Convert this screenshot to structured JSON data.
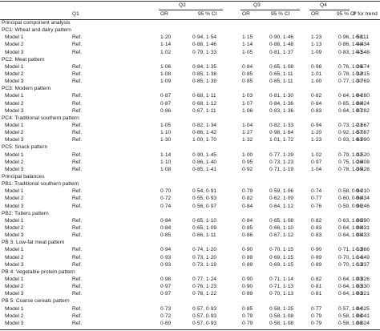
{
  "header": {
    "q1": "Q1",
    "q2": "Q2",
    "q3": "Q3",
    "q4": "Q4",
    "or": "OR",
    "ci": "95 % CI",
    "p_italic": "P",
    "p_rest": " for trend"
  },
  "rows": [
    {
      "type": "section",
      "label": "Principal component analysis"
    },
    {
      "type": "group",
      "label": "PC1: Wheat and dairy pattern"
    },
    {
      "type": "data",
      "model": "Model 1",
      "q1": "Ref.",
      "or2": "1·20",
      "ci2": "0·94, 1·54",
      "or3": "1·15",
      "ci3": "0·90, 1·46",
      "or4": "1·23",
      "ci4": "0·96, 1·58",
      "p": "0·111"
    },
    {
      "type": "data",
      "model": "Model 2",
      "q1": "Ref.",
      "or2": "1·14",
      "ci2": "0·88, 1·46",
      "or3": "1·14",
      "ci3": "0·88, 1·48",
      "or4": "1·13",
      "ci4": "0·86, 1·48",
      "p": "0·434"
    },
    {
      "type": "data",
      "model": "Model 3",
      "q1": "Ref.",
      "or2": "1·02",
      "ci2": "0·79, 1·33",
      "or3": "1·05",
      "ci3": "0·81, 1·37",
      "or4": "1·09",
      "ci4": "0·83, 1·43",
      "p": "0·548"
    },
    {
      "type": "group",
      "label": "PC2: Meat pattern"
    },
    {
      "type": "data",
      "model": "Model 1",
      "q1": "Ref.",
      "or2": "1·06",
      "ci2": "0·84, 1·35",
      "or3": "0·84",
      "ci3": "0·65, 1·08",
      "or4": "0·98",
      "ci4": "0·76, 1·26",
      "p": "0·674"
    },
    {
      "type": "data",
      "model": "Model 2",
      "q1": "Ref.",
      "or2": "1·08",
      "ci2": "0·85, 1·38",
      "or3": "0·85",
      "ci3": "0·65, 1·11",
      "or4": "1·01",
      "ci4": "0·78, 1·32",
      "p": "0·815"
    },
    {
      "type": "data",
      "model": "Model 3",
      "q1": "Ref.",
      "or2": "1·09",
      "ci2": "0·85, 1·39",
      "or3": "0·85",
      "ci3": "0·65, 1·11",
      "or4": "1·00",
      "ci4": "0·77, 1·30",
      "p": "0·769"
    },
    {
      "type": "group",
      "label": "PC3: Modern pattern"
    },
    {
      "type": "data",
      "model": "Model 1",
      "q1": "Ref.",
      "or2": "0·87",
      "ci2": "0·68, 1·11",
      "or3": "1·03",
      "ci3": "0·81, 1·30",
      "or4": "0·82",
      "ci4": "0·64, 1·04",
      "p": "0·280"
    },
    {
      "type": "data",
      "model": "Model 2",
      "q1": "Ref.",
      "or2": "0·87",
      "ci2": "0·68, 1·12",
      "or3": "1·07",
      "ci3": "0·84, 1·36",
      "or4": "0·84",
      "ci4": "0·65, 1·08",
      "p": "0·424"
    },
    {
      "type": "data",
      "model": "Model 3",
      "q1": "Ref.",
      "or2": "0·86",
      "ci2": "0·67, 1·11",
      "or3": "1·06",
      "ci3": "0·83, 1·36",
      "or4": "0·83",
      "ci4": "0·64, 1·07",
      "p": "0·282"
    },
    {
      "type": "group",
      "label": "PC4: Traditional southern pattern"
    },
    {
      "type": "data",
      "model": "Model 1",
      "q1": "Ref.",
      "or2": "1·05",
      "ci2": "0·82, 1·34",
      "or3": "1·04",
      "ci3": "0·82, 1·33",
      "or4": "0·94",
      "ci4": "0·73, 1·21",
      "p": "0·667"
    },
    {
      "type": "data",
      "model": "Model 2",
      "q1": "Ref.",
      "or2": "1·10",
      "ci2": "0·86, 1·42",
      "or3": "1·27",
      "ci3": "0·98, 1·64",
      "or4": "1·20",
      "ci4": "0·92, 1·57",
      "p": "0·087"
    },
    {
      "type": "data",
      "model": "Model 3",
      "q1": "Ref.",
      "or2": "1·30",
      "ci2": "1·00, 1·70",
      "or3": "1·32",
      "ci3": "1·01, 1·72",
      "or4": "1·23",
      "ci4": "0·93, 1·63",
      "p": "0·090"
    },
    {
      "type": "group",
      "label": "PC5: Snack pattern"
    },
    {
      "type": "data",
      "model": "Model 1",
      "q1": "Ref.",
      "or2": "1·14",
      "ci2": "0·90, 1·45",
      "or3": "1·00",
      "ci3": "0·77, 1·29",
      "or4": "1·02",
      "ci4": "0·79, 1·32",
      "p": "0·520"
    },
    {
      "type": "data",
      "model": "Model 2",
      "q1": "Ref.",
      "or2": "1·10",
      "ci2": "0·86, 1·40",
      "or3": "0·95",
      "ci3": "0·73, 1·23",
      "or4": "0·97",
      "ci4": "0·75, 1·26",
      "p": "0·408"
    },
    {
      "type": "data",
      "model": "Model 3",
      "q1": "Ref.",
      "or2": "1·08",
      "ci2": "0·85, 1·41",
      "or3": "0·92",
      "ci3": "0·71, 1·19",
      "or4": "1·04",
      "ci4": "0·78, 1·35",
      "p": "0·428"
    },
    {
      "type": "section",
      "label": "Principal balances"
    },
    {
      "type": "group",
      "label": "PB1: Traditional southern pattern"
    },
    {
      "type": "data",
      "model": "Model 1",
      "q1": "Ref.",
      "or2": "0·70",
      "ci2": "0·54, 0·91",
      "or3": "0·79",
      "ci3": "0·59, 1·06",
      "or4": "0·74",
      "ci4": "0·58, 0·94",
      "p": "0·210"
    },
    {
      "type": "data",
      "model": "Model 2",
      "q1": "Ref.",
      "or2": "0·72",
      "ci2": "0·55, 0·93",
      "or3": "0·82",
      "ci3": "0·62, 1·09",
      "or4": "0·77",
      "ci4": "0·60, 0·98",
      "p": "0·434"
    },
    {
      "type": "data",
      "model": "Model 3",
      "q1": "Ref.",
      "or2": "0·74",
      "ci2": "0·56, 0·97",
      "or3": "0·84",
      "ci3": "0·64, 1·12",
      "or4": "0·76",
      "ci4": "0·59, 0·96",
      "p": "0·246"
    },
    {
      "type": "group",
      "label": "PB2: Tubers pattern"
    },
    {
      "type": "data",
      "model": "Model 1",
      "q1": "Ref.",
      "or2": "0·84",
      "ci2": "0·65, 1·10",
      "or3": "0·84",
      "ci3": "0·65, 1·08",
      "or4": "0·82",
      "ci4": "0·63, 1·06",
      "p": "0·390"
    },
    {
      "type": "data",
      "model": "Model 2",
      "q1": "Ref.",
      "or2": "0·84",
      "ci2": "0·65, 1·09",
      "or3": "0·85",
      "ci3": "0·66, 1·10",
      "or4": "0·83",
      "ci4": "0·64, 1·08",
      "p": "0·431"
    },
    {
      "type": "data",
      "model": "Model 3",
      "q1": "Ref.",
      "or2": "0·85",
      "ci2": "0·66, 1·11",
      "or3": "0·86",
      "ci3": "0·67, 1·12",
      "or4": "0·83",
      "ci4": "0·64, 1·08",
      "p": "0·433"
    },
    {
      "type": "group",
      "label": "PB 3: Low-fat meat pattern"
    },
    {
      "type": "data",
      "model": "Model 1",
      "q1": "Ref.",
      "or2": "0·94",
      "ci2": "0·74, 1·20",
      "or3": "0·90",
      "ci3": "0·70, 1·15",
      "or4": "0·90",
      "ci4": "0·71, 1·13",
      "p": "0·366"
    },
    {
      "type": "data",
      "model": "Model 2",
      "q1": "Ref.",
      "or2": "0·93",
      "ci2": "0·73, 1·20",
      "or3": "0·89",
      "ci3": "0·69, 1·15",
      "or4": "0·89",
      "ci4": "0·70, 1·14",
      "p": "0·349"
    },
    {
      "type": "data",
      "model": "Model 3",
      "q1": "Ref.",
      "or2": "0·93",
      "ci2": "0·73, 1·19",
      "or3": "0·89",
      "ci3": "0·69, 1·15",
      "or4": "0·89",
      "ci4": "0·70, 1·13",
      "p": "0·337"
    },
    {
      "type": "group",
      "label": "PB 4: Vegetable protein pattern"
    },
    {
      "type": "data",
      "model": "Model 1",
      "q1": "Ref.",
      "or2": "0·98",
      "ci2": "0·77, 1·24",
      "or3": "0·90",
      "ci3": "0·71, 1·14",
      "or4": "0·82",
      "ci4": "0·64, 1·03",
      "p": "0·326"
    },
    {
      "type": "data",
      "model": "Model 2",
      "q1": "Ref.",
      "or2": "0·97",
      "ci2": "0·76, 1·23",
      "or3": "0·90",
      "ci3": "0·71, 1·13",
      "or4": "0·81",
      "ci4": "0·64, 1·03",
      "p": "0·330"
    },
    {
      "type": "data",
      "model": "Model 3",
      "q1": "Ref.",
      "or2": "0·97",
      "ci2": "0·76, 1·22",
      "or3": "0·89",
      "ci3": "0·70, 1·13",
      "or4": "0·81",
      "ci4": "0·64, 1·03",
      "p": "0·321"
    },
    {
      "type": "group",
      "label": "PB 5: Coarse cereals pattern"
    },
    {
      "type": "data",
      "model": "Model 1",
      "q1": "Ref.",
      "or2": "0·73",
      "ci2": "0·57, 0·93",
      "or3": "0·85",
      "ci3": "0·58, 1·25",
      "or4": "0·77",
      "ci4": "0·57, 1·04",
      "p": "0·025"
    },
    {
      "type": "data",
      "model": "Model 2",
      "q1": "Ref.",
      "or2": "0·72",
      "ci2": "0·57, 0·93",
      "or3": "0·79",
      "ci3": "0·58, 1·08",
      "or4": "0·79",
      "ci4": "0·58, 1·08",
      "p": "0·041"
    },
    {
      "type": "data",
      "model": "Model 3",
      "q1": "Ref.",
      "or2": "0·69",
      "ci2": "0·57, 0·93",
      "or3": "0·79",
      "ci3": "0·58, 1·08",
      "or4": "0·79",
      "ci4": "0·58, 1·08",
      "p": "0·024"
    }
  ]
}
